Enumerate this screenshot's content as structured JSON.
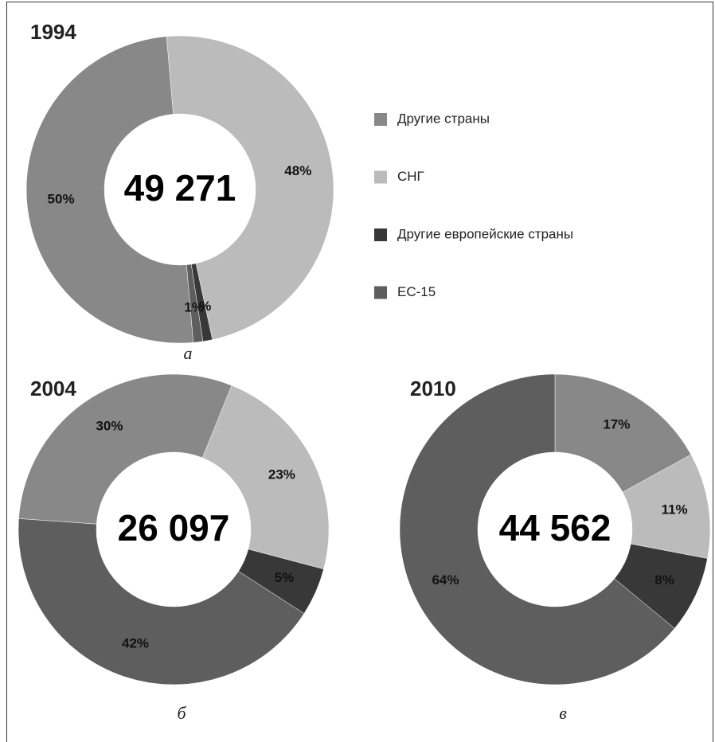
{
  "chart_data": [
    {
      "type": "donut",
      "title": "1994",
      "center_label": "49 271",
      "caption": "а",
      "categories": [
        "Другие страны",
        "СНГ",
        "Другие европейские страны",
        "ЕС-15"
      ],
      "values": [
        50,
        48,
        1,
        1
      ],
      "value_labels": [
        "50%",
        "48%",
        "1%",
        "1%"
      ],
      "colors": [
        "#888888",
        "#bbbbbb",
        "#383838",
        "#5e5e5e"
      ],
      "legend": "right"
    },
    {
      "type": "donut",
      "title": "2004",
      "center_label": "26 097",
      "caption": "б",
      "categories": [
        "Другие страны",
        "СНГ",
        "Другие европейские страны",
        "ЕС-15"
      ],
      "values": [
        30,
        23,
        5,
        42
      ],
      "value_labels": [
        "30%",
        "23%",
        "5%",
        "42%"
      ],
      "colors": [
        "#888888",
        "#bbbbbb",
        "#383838",
        "#5e5e5e"
      ]
    },
    {
      "type": "donut",
      "title": "2010",
      "center_label": "44 562",
      "caption": "в",
      "categories": [
        "Другие страны",
        "СНГ",
        "Другие европейские страны",
        "ЕС-15"
      ],
      "values": [
        17,
        11,
        8,
        64
      ],
      "value_labels": [
        "17%",
        "11%",
        "8%",
        "64%"
      ],
      "colors": [
        "#888888",
        "#bbbbbb",
        "#383838",
        "#5e5e5e"
      ]
    }
  ]
}
